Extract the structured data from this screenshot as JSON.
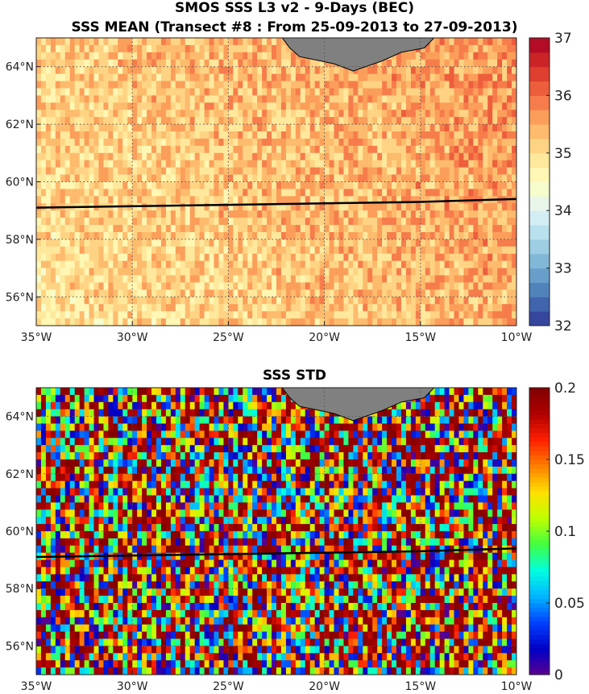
{
  "figure": {
    "title_line1": "SMOS SSS L3 v2 - 9-Days (BEC)",
    "title_line2": "SSS MEAN (Transect #8 : From 25-09-2013 to 27-09-2013)",
    "title_bottom": "SSS STD"
  },
  "chart_data": [
    {
      "type": "heatmap",
      "title": "SSS MEAN (Transect #8 : From 25-09-2013 to 27-09-2013)",
      "xlim": [
        -35,
        -10
      ],
      "ylim": [
        55,
        65
      ],
      "x_ticks": [
        -35,
        -30,
        -25,
        -20,
        -15,
        -10
      ],
      "x_tick_labels": [
        "35°W",
        "30°W",
        "25°W",
        "20°W",
        "15°W",
        "10°W"
      ],
      "y_ticks": [
        56,
        58,
        60,
        62,
        64
      ],
      "y_tick_labels": [
        "56°N",
        "58°N",
        "60°N",
        "62°N",
        "64°N"
      ],
      "grid": true,
      "colorbar": {
        "min": 32,
        "max": 37,
        "ticks": [
          32,
          33,
          34,
          35,
          36,
          37
        ],
        "colormap": "RdYlBu_r",
        "levels": 20
      },
      "transect": {
        "lon": [
          -35,
          -25,
          -20,
          -15,
          -10
        ],
        "lat": [
          59.1,
          59.2,
          59.25,
          59.3,
          59.4
        ]
      },
      "land_color": "#808080"
    },
    {
      "type": "heatmap",
      "title": "SSS STD",
      "xlim": [
        -35,
        -10
      ],
      "ylim": [
        55,
        65
      ],
      "x_ticks": [
        -35,
        -30,
        -25,
        -20,
        -15,
        -10
      ],
      "x_tick_labels": [
        "35°W",
        "30°W",
        "25°W",
        "20°W",
        "15°W",
        "10°W"
      ],
      "y_ticks": [
        56,
        58,
        60,
        62,
        64
      ],
      "y_tick_labels": [
        "56°N",
        "58°N",
        "60°N",
        "62°N",
        "64°N"
      ],
      "grid": true,
      "colorbar": {
        "min": 0,
        "max": 0.2,
        "ticks": [
          0,
          0.05,
          0.1,
          0.15,
          0.2
        ],
        "tick_labels": [
          "0",
          "0.05",
          "0.1",
          "0.15",
          "0.2"
        ],
        "colormap": "jet"
      },
      "transect": {
        "lon": [
          -35,
          -25,
          -20,
          -15,
          -10
        ],
        "lat": [
          59.1,
          59.2,
          59.25,
          59.3,
          59.4
        ]
      },
      "land_color": "#808080"
    }
  ]
}
